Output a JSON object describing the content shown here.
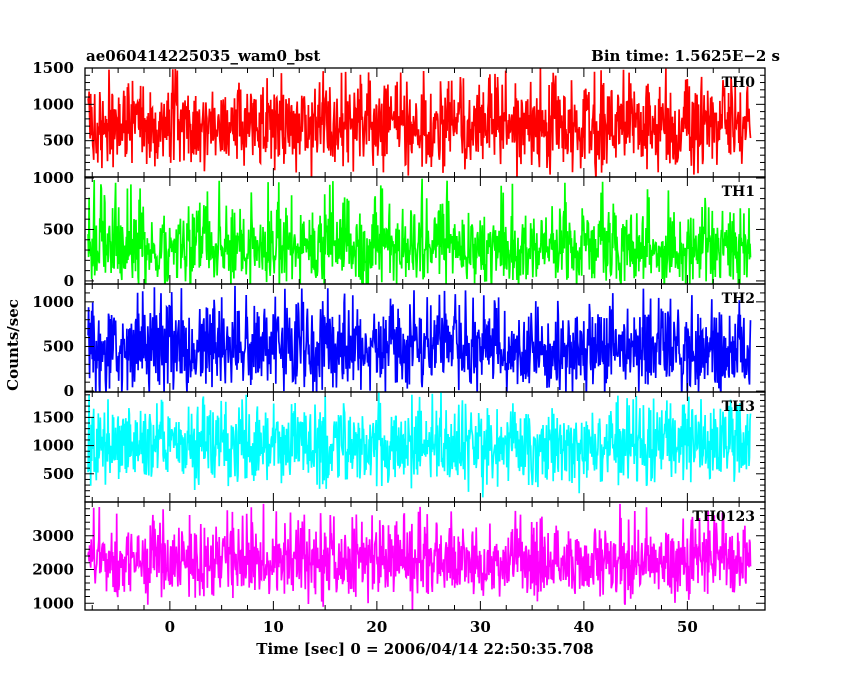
{
  "header": {
    "left_title": "ae060414225035_wam0_bst",
    "right_title": "Bin time: 1.5625E−2 s"
  },
  "chart_data": {
    "type": "line",
    "xlabel": "Time [sec] 0 = 2006/04/14 22:50:35.708",
    "ylabel": "Counts/sec",
    "xlim": [
      -8.2,
      57.5
    ],
    "xticks": [
      0,
      10,
      20,
      30,
      40,
      50
    ],
    "x_data_range": [
      -7.9,
      56.1
    ],
    "panels": [
      {
        "name": "TH0",
        "color": "#ff0000",
        "ylim": [
          0,
          1500
        ],
        "yticks": [
          500,
          1000,
          1500
        ],
        "mean": 700,
        "typical_min": 150,
        "typical_max": 1270,
        "peak_max": 1500
      },
      {
        "name": "TH1",
        "color": "#00ff00",
        "ylim": [
          -30,
          1010
        ],
        "yticks": [
          0,
          500,
          1000
        ],
        "mean": 320,
        "typical_min": 30,
        "typical_max": 700,
        "peak_max": 1000
      },
      {
        "name": "TH2",
        "color": "#0000ff",
        "ylim": [
          -10,
          1200
        ],
        "yticks": [
          0,
          500,
          1000
        ],
        "mean": 470,
        "typical_min": 60,
        "typical_max": 920,
        "peak_max": 1180
      },
      {
        "name": "TH3",
        "color": "#00ffff",
        "ylim": [
          0,
          1950
        ],
        "yticks": [
          500,
          1000,
          1500
        ],
        "mean": 1000,
        "typical_min": 350,
        "typical_max": 1650,
        "peak_max": 1950
      },
      {
        "name": "TH0123",
        "color": "#ff00ff",
        "ylim": [
          800,
          4000
        ],
        "yticks": [
          1000,
          2000,
          3000
        ],
        "mean": 2250,
        "typical_min": 1300,
        "typical_max": 3300,
        "peak_max": 4000
      }
    ]
  }
}
